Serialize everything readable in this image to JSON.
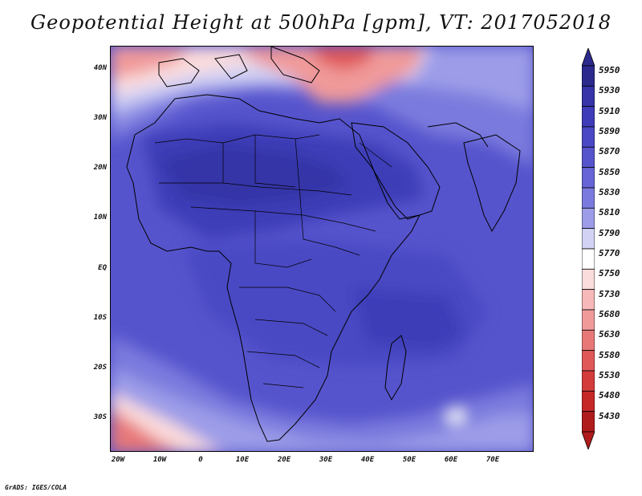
{
  "title": "Geopotential Height at 500hPa [gpm], VT: 2017052018",
  "credit": "GrADS: IGES/COLA",
  "map": {
    "lon_range": [
      -22,
      80
    ],
    "lat_range": [
      -36.5,
      45
    ],
    "y_ticks": [
      {
        "lat": 40,
        "label": "40N"
      },
      {
        "lat": 30,
        "label": "30N"
      },
      {
        "lat": 20,
        "label": "20N"
      },
      {
        "lat": 10,
        "label": "10N"
      },
      {
        "lat": 0,
        "label": "EQ"
      },
      {
        "lat": -10,
        "label": "10S"
      },
      {
        "lat": -20,
        "label": "20S"
      },
      {
        "lat": -30,
        "label": "30S"
      }
    ],
    "x_ticks": [
      {
        "lon": -20,
        "label": "20W"
      },
      {
        "lon": -10,
        "label": "10W"
      },
      {
        "lon": 0,
        "label": "0"
      },
      {
        "lon": 10,
        "label": "10E"
      },
      {
        "lon": 20,
        "label": "20E"
      },
      {
        "lon": 30,
        "label": "30E"
      },
      {
        "lon": 40,
        "label": "40E"
      },
      {
        "lon": 50,
        "label": "50E"
      },
      {
        "lon": 60,
        "label": "60E"
      },
      {
        "lon": 70,
        "label": "70E"
      }
    ]
  },
  "colorbar": {
    "levels": [
      "5950",
      "5930",
      "5910",
      "5890",
      "5870",
      "5850",
      "5830",
      "5810",
      "5790",
      "5770",
      "5750",
      "5730",
      "5680",
      "5630",
      "5580",
      "5530",
      "5480",
      "5430"
    ],
    "colors": [
      "#2c2a8c",
      "#3634a8",
      "#3e3cb8",
      "#4a48c4",
      "#5654cc",
      "#6664d6",
      "#7a7ade",
      "#9c9ce8",
      "#d2d2f4",
      "#ffffff",
      "#fbdcdc",
      "#f6b8b8",
      "#f09a9a",
      "#e87878",
      "#e05858",
      "#d43c3c",
      "#c62828",
      "#b01c1c"
    ]
  }
}
